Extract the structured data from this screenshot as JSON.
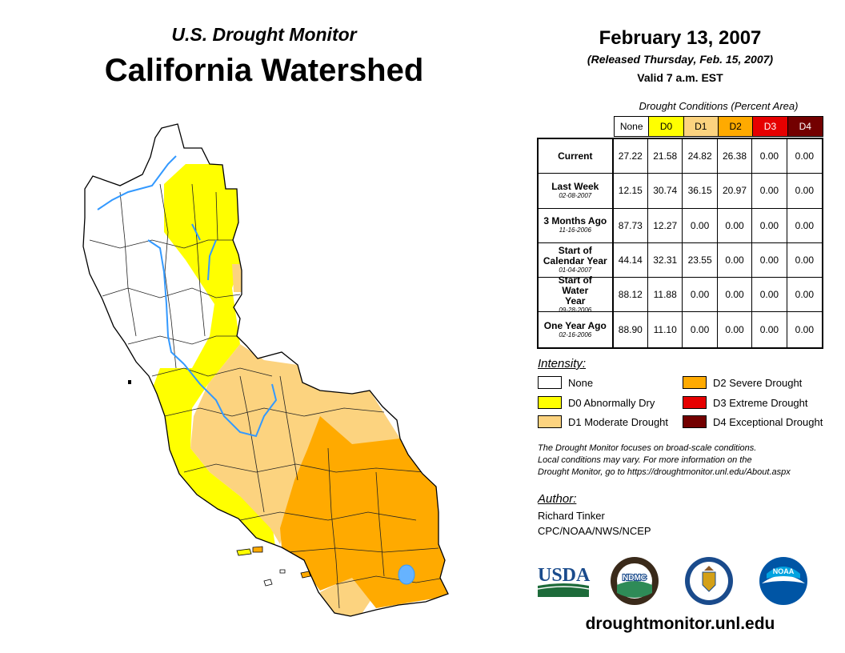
{
  "header": {
    "subtitle": "U.S. Drought Monitor",
    "title": "California Watershed",
    "date": "February 13, 2007",
    "released": "(Released Thursday, Feb. 15, 2007)",
    "valid": "Valid 7 a.m. EST"
  },
  "conditions_table": {
    "caption": "Drought Conditions (Percent Area)",
    "columns": [
      {
        "label": "None",
        "color": "#ffffff"
      },
      {
        "label": "D0",
        "color": "#ffff00"
      },
      {
        "label": "D1",
        "color": "#fcd37f"
      },
      {
        "label": "D2",
        "color": "#ffaa00"
      },
      {
        "label": "D3",
        "color": "#e60000"
      },
      {
        "label": "D4",
        "color": "#730000"
      }
    ],
    "rows": [
      {
        "label": "Current",
        "date": "",
        "values": [
          "27.22",
          "21.58",
          "24.82",
          "26.38",
          "0.00",
          "0.00"
        ]
      },
      {
        "label": "Last Week",
        "date": "02-08-2007",
        "values": [
          "12.15",
          "30.74",
          "36.15",
          "20.97",
          "0.00",
          "0.00"
        ]
      },
      {
        "label": "3 Months Ago",
        "date": "11-16-2006",
        "values": [
          "87.73",
          "12.27",
          "0.00",
          "0.00",
          "0.00",
          "0.00"
        ]
      },
      {
        "label": "Start of Calendar Year",
        "date": "01-04-2007",
        "values": [
          "44.14",
          "32.31",
          "23.55",
          "0.00",
          "0.00",
          "0.00"
        ]
      },
      {
        "label": "Start of Water Year",
        "date": "09-28-2006",
        "values": [
          "88.12",
          "11.88",
          "0.00",
          "0.00",
          "0.00",
          "0.00"
        ]
      },
      {
        "label": "One Year Ago",
        "date": "02-16-2006",
        "values": [
          "88.90",
          "11.10",
          "0.00",
          "0.00",
          "0.00",
          "0.00"
        ]
      }
    ]
  },
  "legend": {
    "title": "Intensity:",
    "items": [
      {
        "label": "None",
        "color": "#ffffff"
      },
      {
        "label": "D0 Abnormally Dry",
        "color": "#ffff00"
      },
      {
        "label": "D1 Moderate Drought",
        "color": "#fcd37f"
      },
      {
        "label": "D2 Severe Drought",
        "color": "#ffaa00"
      },
      {
        "label": "D3 Extreme Drought",
        "color": "#e60000"
      },
      {
        "label": "D4 Exceptional Drought",
        "color": "#730000"
      }
    ]
  },
  "note": {
    "line1": "The Drought Monitor focuses on broad-scale conditions.",
    "line2": "Local conditions may vary. For more information on the",
    "line3": "Drought Monitor, go to https://droughtmonitor.unl.edu/About.aspx"
  },
  "author": {
    "title": "Author:",
    "name": "Richard Tinker",
    "org": "CPC/NOAA/NWS/NCEP"
  },
  "logos": {
    "usda": "USDA",
    "ndmc": "NDMC",
    "noaa": "NOAA"
  },
  "footer": {
    "website": "droughtmonitor.unl.edu"
  }
}
